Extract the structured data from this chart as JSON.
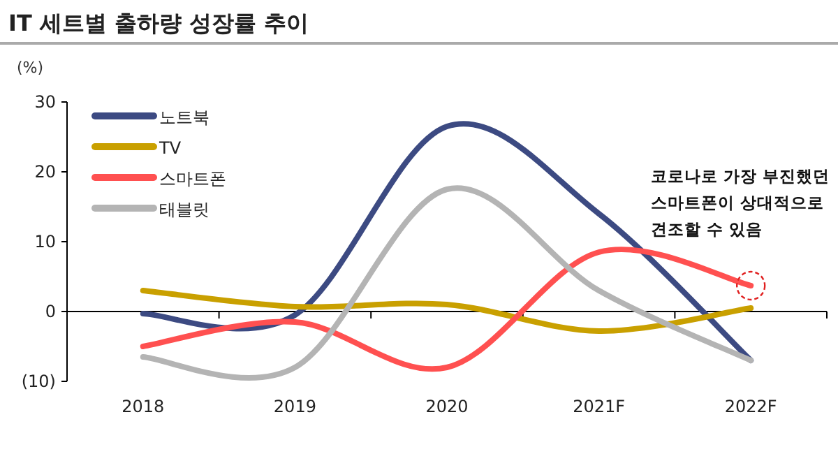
{
  "chart_data": {
    "type": "line",
    "title": "IT 세트별 출하량 성장률 추이",
    "ylabel": "(%)",
    "categories": [
      "2018",
      "2019",
      "2020",
      "2021F",
      "2022F"
    ],
    "series": [
      {
        "name": "노트북",
        "color": "#3c4a82",
        "values": [
          -0.3,
          -0.5,
          26.5,
          14,
          -7
        ]
      },
      {
        "name": "TV",
        "color": "#c9a000",
        "values": [
          3,
          0.7,
          1,
          -2.8,
          0.5
        ]
      },
      {
        "name": "스마트폰",
        "color": "#ff5050",
        "values": [
          -5,
          -1.5,
          -8,
          8.5,
          3.7
        ]
      },
      {
        "name": "태블릿",
        "color": "#b4b4b4",
        "values": [
          -6.5,
          -8,
          17.5,
          3,
          -7
        ]
      }
    ],
    "ylim": [
      -10,
      30
    ],
    "yticks": [
      {
        "value": -10,
        "label": "(10)"
      },
      0,
      10,
      20,
      30
    ],
    "legend": "top left",
    "marker": "none",
    "line_style": "solid",
    "annotations": [
      {
        "text": "코로나로 가장 부진했던\n스마트폰이 상대적으로\n견조할 수 있음",
        "x": "2022F",
        "y": 3.7
      }
    ]
  }
}
